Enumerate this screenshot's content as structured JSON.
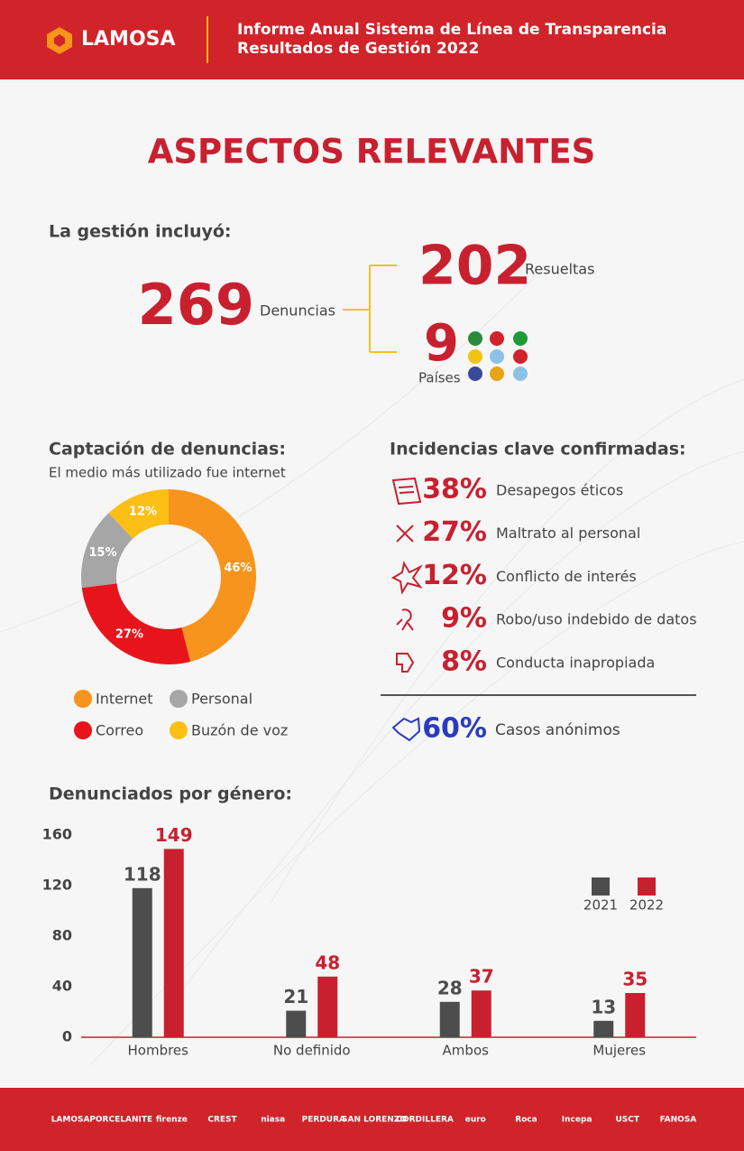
{
  "header": {
    "logo": "LAMOSA",
    "title_line1": "Informe Anual Sistema de Línea de Transparencia",
    "title_line2": "Resultados de Gestión 2022"
  },
  "title": "ASPECTOS RELEVANTES",
  "summary": {
    "heading": "La gestión incluyó:",
    "total": {
      "value": "269",
      "label": "Denuncias"
    },
    "resolved": {
      "value": "202",
      "label": "Resueltas"
    },
    "countries": {
      "value": "9",
      "label": "Países"
    }
  },
  "incidents": {
    "heading": "Incidencias clave confirmadas:",
    "items": [
      {
        "percent": "38%",
        "label": "Desapegos éticos"
      },
      {
        "percent": "27%",
        "label": "Maltrato al personal"
      },
      {
        "percent": "12%",
        "label": "Conflicto de interés"
      },
      {
        "percent": "9%",
        "label": "Robo/uso indebido de datos"
      },
      {
        "percent": "8%",
        "label": "Conducta inapropiada"
      }
    ],
    "anonymous": {
      "percent": "60%",
      "label": "Casos anónimos"
    }
  },
  "footer": {
    "brands": [
      "LAMOSA",
      "PORCELANITE",
      "firenze",
      "CREST",
      "niasa",
      "PERDURA",
      "SAN LORENZO",
      "CORDILLERA",
      "euro",
      "Roca",
      "Incepa",
      "USCT",
      "FANOSA"
    ]
  },
  "chart_data": [
    {
      "type": "pie",
      "title": "Captación de denuncias:",
      "subtitle": "El medio más utilizado fue internet",
      "categories": [
        "Internet",
        "Correo",
        "Personal",
        "Buzón de voz"
      ],
      "values": [
        46,
        27,
        15,
        12
      ],
      "value_labels": [
        "46%",
        "27%",
        "15%",
        "12%"
      ],
      "colors": [
        "#f7941d",
        "#e8141b",
        "#a6a6a6",
        "#fbbf16"
      ],
      "donut": true
    },
    {
      "type": "bar",
      "title": "Denunciados por género:",
      "categories": [
        "Hombres",
        "No definido",
        "Ambos",
        "Mujeres"
      ],
      "series": [
        {
          "name": "2021",
          "color": "#4d4d4d",
          "values": [
            118,
            21,
            28,
            13
          ]
        },
        {
          "name": "2022",
          "color": "#c8202f",
          "values": [
            149,
            48,
            37,
            35
          ]
        }
      ],
      "ylim": [
        0,
        160
      ],
      "yticks": [
        0,
        40,
        80,
        120,
        160
      ],
      "grid": false
    }
  ]
}
